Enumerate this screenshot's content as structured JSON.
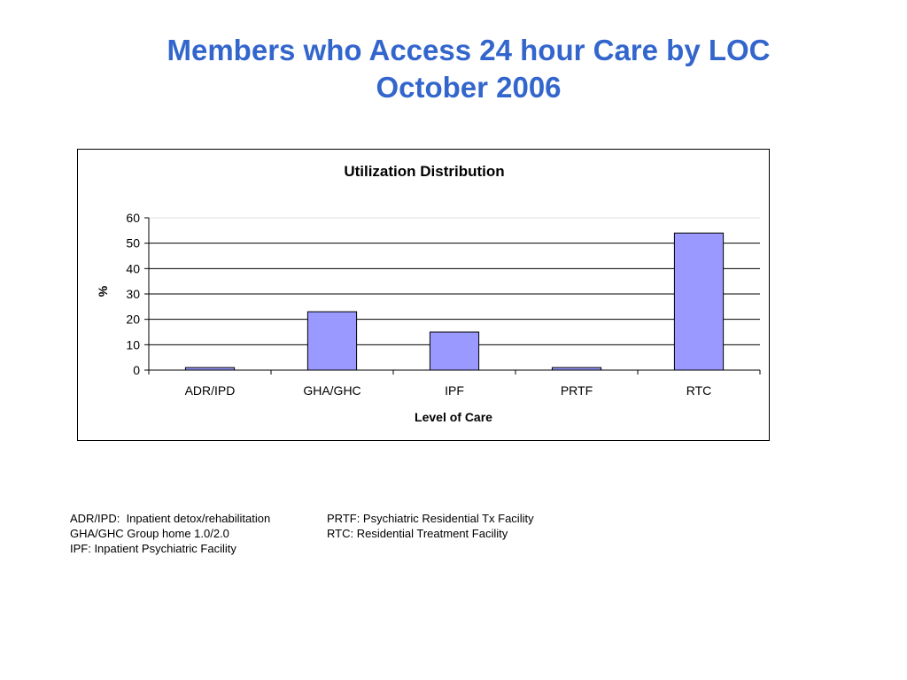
{
  "slide": {
    "title_line1": "Members who Access 24 hour Care by LOC",
    "title_line2": "October 2006",
    "accent_color": "#3366cc"
  },
  "chart_data": {
    "type": "bar",
    "title": "Utilization Distribution",
    "xlabel": "Level of Care",
    "ylabel": "%",
    "categories": [
      "ADR/IPD",
      "GHA/GHC",
      "IPF",
      "PRTF",
      "RTC"
    ],
    "values": [
      1,
      23,
      15,
      1,
      54
    ],
    "ylim": [
      0,
      60
    ],
    "yticks": [
      0,
      10,
      20,
      30,
      40,
      50,
      60
    ],
    "grid": true,
    "bar_color": "#9999ff",
    "legend": "none"
  },
  "notes": {
    "col1": [
      "ADR/IPD:  Inpatient detox/rehabilitation",
      "GHA/GHC Group home 1.0/2.0",
      "IPF: Inpatient Psychiatric Facility"
    ],
    "col2": [
      "PRTF: Psychiatric Residential Tx Facility",
      "RTC: Residential Treatment Facility"
    ]
  }
}
